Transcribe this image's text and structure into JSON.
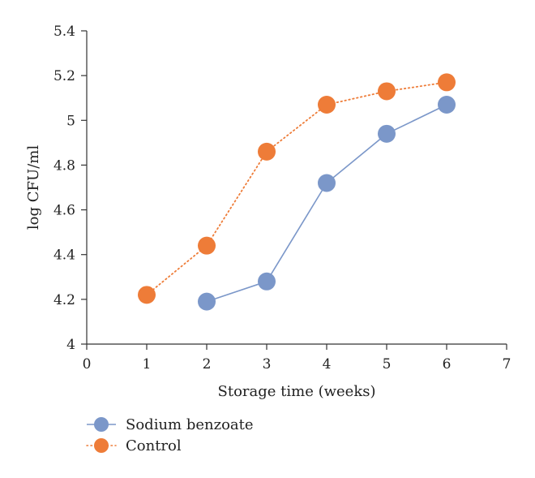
{
  "chart_data": {
    "type": "line",
    "title": "",
    "xlabel": "Storage time (weeks)",
    "ylabel": "log CFU/ml",
    "xlim": [
      0,
      7
    ],
    "ylim": [
      4,
      5.4
    ],
    "x_ticks": [
      "0",
      "1",
      "2",
      "3",
      "4",
      "5",
      "6",
      "7"
    ],
    "y_ticks": [
      "4",
      "4.2",
      "4.4",
      "4.6",
      "4.8",
      "5",
      "5.2",
      "5.4"
    ],
    "grid": false,
    "legend_position": "bottom-left",
    "series": [
      {
        "name": "Sodium benzoate",
        "color": "#7b97c9",
        "line_style": "solid",
        "points": [
          {
            "x": 2,
            "y": 4.19
          },
          {
            "x": 3,
            "y": 4.28
          },
          {
            "x": 4,
            "y": 4.72
          },
          {
            "x": 5,
            "y": 4.94
          },
          {
            "x": 6,
            "y": 5.07
          }
        ]
      },
      {
        "name": "Control",
        "color": "#ee7c38",
        "line_style": "dotted",
        "points": [
          {
            "x": 1,
            "y": 4.22
          },
          {
            "x": 2,
            "y": 4.44
          },
          {
            "x": 3,
            "y": 4.86
          },
          {
            "x": 4,
            "y": 5.07
          },
          {
            "x": 5,
            "y": 5.13
          },
          {
            "x": 6,
            "y": 5.17
          }
        ]
      }
    ]
  }
}
